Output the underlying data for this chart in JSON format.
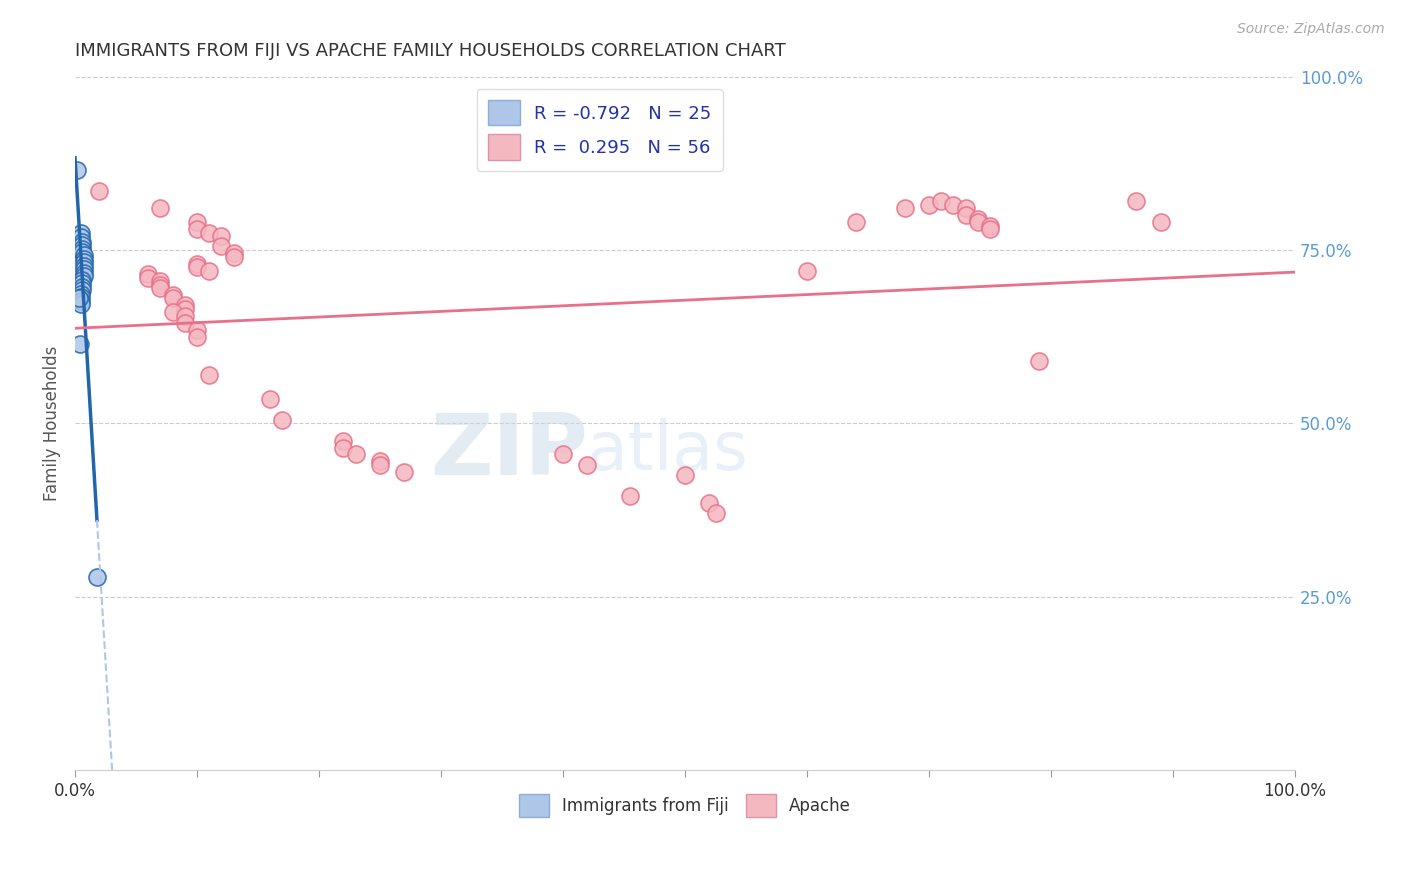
{
  "title": "IMMIGRANTS FROM FIJI VS APACHE FAMILY HOUSEHOLDS CORRELATION CHART",
  "source": "Source: ZipAtlas.com",
  "ylabel": "Family Households",
  "xlim": [
    0.0,
    1.0
  ],
  "ylim": [
    0.0,
    1.0
  ],
  "legend1_label": "R = -0.792   N = 25",
  "legend2_label": "R =  0.295   N = 56",
  "legend1_face_color": "#aec6e8",
  "legend2_face_color": "#f4b8c1",
  "line1_color": "#2166ac",
  "line2_color": "#e8708a",
  "watermark_zip": "ZIP",
  "watermark_atlas": "atlas",
  "fiji_points": [
    [
      0.002,
      0.865
    ],
    [
      0.005,
      0.775
    ],
    [
      0.005,
      0.768
    ],
    [
      0.006,
      0.762
    ],
    [
      0.006,
      0.757
    ],
    [
      0.006,
      0.752
    ],
    [
      0.006,
      0.747
    ],
    [
      0.007,
      0.742
    ],
    [
      0.007,
      0.737
    ],
    [
      0.007,
      0.732
    ],
    [
      0.007,
      0.727
    ],
    [
      0.007,
      0.722
    ],
    [
      0.007,
      0.717
    ],
    [
      0.007,
      0.712
    ],
    [
      0.006,
      0.707
    ],
    [
      0.006,
      0.702
    ],
    [
      0.006,
      0.697
    ],
    [
      0.006,
      0.692
    ],
    [
      0.005,
      0.687
    ],
    [
      0.005,
      0.682
    ],
    [
      0.005,
      0.677
    ],
    [
      0.005,
      0.672
    ],
    [
      0.004,
      0.615
    ],
    [
      0.003,
      0.68
    ],
    [
      0.018,
      0.278
    ]
  ],
  "apache_points": [
    [
      0.02,
      0.835
    ],
    [
      0.07,
      0.81
    ],
    [
      0.1,
      0.79
    ],
    [
      0.1,
      0.78
    ],
    [
      0.11,
      0.775
    ],
    [
      0.12,
      0.77
    ],
    [
      0.12,
      0.755
    ],
    [
      0.13,
      0.745
    ],
    [
      0.13,
      0.74
    ],
    [
      0.1,
      0.73
    ],
    [
      0.1,
      0.725
    ],
    [
      0.11,
      0.72
    ],
    [
      0.06,
      0.715
    ],
    [
      0.06,
      0.71
    ],
    [
      0.07,
      0.705
    ],
    [
      0.07,
      0.7
    ],
    [
      0.07,
      0.695
    ],
    [
      0.08,
      0.685
    ],
    [
      0.08,
      0.68
    ],
    [
      0.09,
      0.67
    ],
    [
      0.09,
      0.665
    ],
    [
      0.08,
      0.66
    ],
    [
      0.09,
      0.655
    ],
    [
      0.09,
      0.645
    ],
    [
      0.1,
      0.635
    ],
    [
      0.1,
      0.625
    ],
    [
      0.11,
      0.57
    ],
    [
      0.16,
      0.535
    ],
    [
      0.17,
      0.505
    ],
    [
      0.22,
      0.475
    ],
    [
      0.22,
      0.465
    ],
    [
      0.23,
      0.455
    ],
    [
      0.25,
      0.445
    ],
    [
      0.25,
      0.44
    ],
    [
      0.27,
      0.43
    ],
    [
      0.4,
      0.455
    ],
    [
      0.42,
      0.44
    ],
    [
      0.455,
      0.395
    ],
    [
      0.5,
      0.425
    ],
    [
      0.52,
      0.385
    ],
    [
      0.525,
      0.37
    ],
    [
      0.6,
      0.72
    ],
    [
      0.64,
      0.79
    ],
    [
      0.68,
      0.81
    ],
    [
      0.7,
      0.815
    ],
    [
      0.71,
      0.82
    ],
    [
      0.72,
      0.815
    ],
    [
      0.73,
      0.81
    ],
    [
      0.73,
      0.8
    ],
    [
      0.74,
      0.795
    ],
    [
      0.74,
      0.79
    ],
    [
      0.75,
      0.785
    ],
    [
      0.75,
      0.78
    ],
    [
      0.79,
      0.59
    ],
    [
      0.87,
      0.82
    ],
    [
      0.89,
      0.79
    ]
  ],
  "grid_color": "#cccccc",
  "background_color": "#ffffff",
  "title_color": "#333333",
  "axis_label_color": "#555555",
  "right_tick_color": "#5b9bd5",
  "bottom_legend_label1": "Immigrants from Fiji",
  "bottom_legend_label2": "Apache"
}
